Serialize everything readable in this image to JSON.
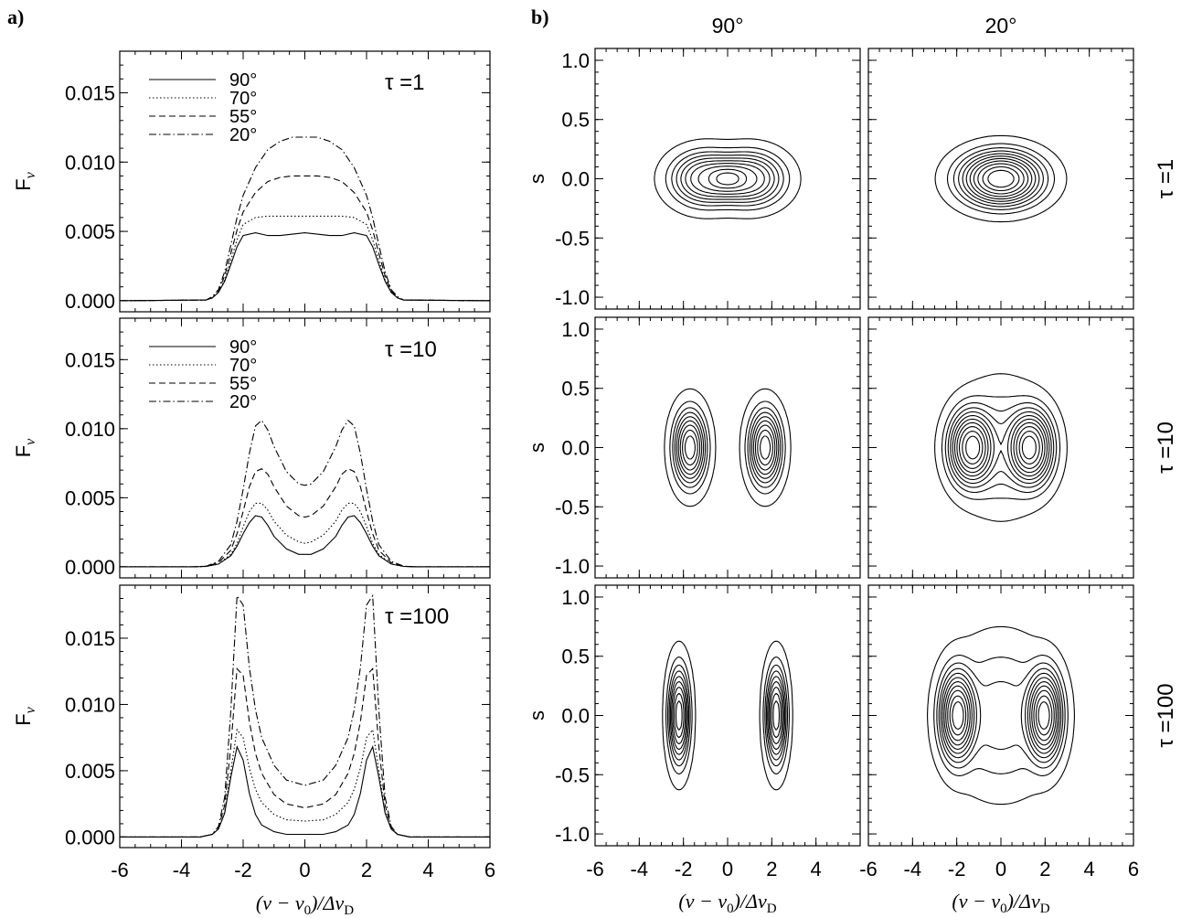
{
  "figure": {
    "panel_a_label": "a)",
    "panel_b_label": "b)",
    "col_labels": [
      "90°",
      "20°"
    ],
    "row_labels": [
      "τ =1",
      "τ =10",
      "τ =100"
    ]
  },
  "chart_data": [
    {
      "type": "line",
      "panel": "a",
      "title": "τ =1",
      "xlabel": "(ν − ν0)/ΔνD",
      "ylabel": "Fν",
      "xlim": [
        -6,
        6
      ],
      "ylim": [
        -0.0008,
        0.018
      ],
      "xticks": [
        -6,
        -4,
        -2,
        0,
        2,
        4,
        6
      ],
      "yticks": [
        "0.000",
        "0.005",
        "0.010",
        "0.015"
      ],
      "legend": "top-left",
      "series": [
        {
          "name": "90°",
          "style": "solid",
          "x": [
            -6,
            -3.2,
            -3,
            -2.8,
            -2.6,
            -2.4,
            -2.2,
            -2,
            -1.6,
            -1.2,
            -0.8,
            -0.4,
            0,
            0.4,
            0.8,
            1.2,
            1.6,
            2,
            2.2,
            2.4,
            2.6,
            2.8,
            3,
            3.2,
            6
          ],
          "y": [
            0,
            5e-05,
            0.0002,
            0.0006,
            0.0014,
            0.0026,
            0.0039,
            0.0047,
            0.0049,
            0.0047,
            0.0047,
            0.0048,
            0.0049,
            0.0048,
            0.0047,
            0.0047,
            0.0049,
            0.0047,
            0.0039,
            0.0026,
            0.0014,
            0.0006,
            0.0002,
            5e-05,
            0
          ]
        },
        {
          "name": "70°",
          "style": "dotted",
          "x": [
            -6,
            -3.2,
            -3,
            -2.8,
            -2.6,
            -2.4,
            -2.2,
            -2,
            -1.6,
            -1.2,
            -0.8,
            -0.4,
            0,
            0.4,
            0.8,
            1.2,
            1.6,
            2,
            2.2,
            2.4,
            2.6,
            2.8,
            3,
            3.2,
            6
          ],
          "y": [
            0,
            5e-05,
            0.0002,
            0.0006,
            0.0015,
            0.0029,
            0.0044,
            0.0055,
            0.006,
            0.0061,
            0.0061,
            0.0061,
            0.0061,
            0.0061,
            0.0061,
            0.0061,
            0.006,
            0.0055,
            0.0044,
            0.0029,
            0.0015,
            0.0006,
            0.0002,
            5e-05,
            0
          ]
        },
        {
          "name": "55°",
          "style": "dashed",
          "x": [
            -6,
            -3.2,
            -3,
            -2.8,
            -2.6,
            -2.4,
            -2.2,
            -2,
            -1.6,
            -1.2,
            -0.8,
            -0.4,
            0,
            0.4,
            0.8,
            1.2,
            1.6,
            2,
            2.2,
            2.4,
            2.6,
            2.8,
            3,
            3.2,
            6
          ],
          "y": [
            0,
            5e-05,
            0.0002,
            0.0007,
            0.0018,
            0.0034,
            0.0051,
            0.0064,
            0.0078,
            0.0086,
            0.0089,
            0.009,
            0.009,
            0.009,
            0.0089,
            0.0086,
            0.0078,
            0.0064,
            0.0051,
            0.0034,
            0.0018,
            0.0007,
            0.0002,
            5e-05,
            0
          ]
        },
        {
          "name": "20°",
          "style": "dashdot",
          "x": [
            -6,
            -3.2,
            -3,
            -2.8,
            -2.6,
            -2.4,
            -2.2,
            -2,
            -1.6,
            -1.2,
            -0.8,
            -0.4,
            0,
            0.4,
            0.8,
            1.2,
            1.6,
            2,
            2.2,
            2.4,
            2.6,
            2.8,
            3,
            3.2,
            6
          ],
          "y": [
            0,
            5e-05,
            0.0003,
            0.0008,
            0.0021,
            0.004,
            0.006,
            0.0076,
            0.0096,
            0.0109,
            0.0115,
            0.0118,
            0.0118,
            0.0118,
            0.0115,
            0.0109,
            0.0096,
            0.0076,
            0.006,
            0.004,
            0.0021,
            0.0008,
            0.0003,
            5e-05,
            0
          ]
        }
      ]
    },
    {
      "type": "line",
      "panel": "a",
      "title": "τ =10",
      "xlabel": "(ν − ν0)/ΔνD",
      "ylabel": "Fν",
      "xlim": [
        -6,
        6
      ],
      "ylim": [
        -0.0008,
        0.018
      ],
      "xticks": [
        -6,
        -4,
        -2,
        0,
        2,
        4,
        6
      ],
      "yticks": [
        "0.000",
        "0.005",
        "0.010",
        "0.015"
      ],
      "legend": "top-left",
      "series": [
        {
          "name": "90°",
          "style": "solid",
          "x": [
            -6,
            -3.6,
            -3.2,
            -2.8,
            -2.4,
            -2.2,
            -2,
            -1.8,
            -1.6,
            -1.4,
            -1.2,
            -1,
            -0.6,
            -0.2,
            0,
            0.2,
            0.6,
            1,
            1.2,
            1.4,
            1.6,
            1.8,
            2,
            2.2,
            2.4,
            2.8,
            3.2,
            3.6,
            6
          ],
          "y": [
            0,
            0,
            3e-05,
            0.0002,
            0.0008,
            0.0015,
            0.0024,
            0.0032,
            0.0037,
            0.0036,
            0.003,
            0.0022,
            0.0013,
            0.0009,
            0.0009,
            0.0009,
            0.0013,
            0.0022,
            0.003,
            0.0036,
            0.0037,
            0.0032,
            0.0024,
            0.0015,
            0.0008,
            0.0002,
            3e-05,
            0,
            0
          ]
        },
        {
          "name": "70°",
          "style": "dotted",
          "x": [
            -6,
            -3.6,
            -3.2,
            -2.8,
            -2.4,
            -2.2,
            -2,
            -1.8,
            -1.6,
            -1.4,
            -1.2,
            -1,
            -0.6,
            -0.2,
            0,
            0.2,
            0.6,
            1,
            1.2,
            1.4,
            1.6,
            1.8,
            2,
            2.2,
            2.4,
            2.8,
            3.2,
            3.6,
            6
          ],
          "y": [
            0,
            0,
            3e-05,
            0.0002,
            0.0009,
            0.0017,
            0.0029,
            0.004,
            0.0046,
            0.0046,
            0.0041,
            0.0033,
            0.0023,
            0.0018,
            0.0017,
            0.0018,
            0.0023,
            0.0033,
            0.0041,
            0.0046,
            0.0046,
            0.004,
            0.0029,
            0.0017,
            0.0009,
            0.0002,
            3e-05,
            0,
            0
          ]
        },
        {
          "name": "55°",
          "style": "dashed",
          "x": [
            -6,
            -3.6,
            -3.2,
            -2.8,
            -2.4,
            -2.2,
            -2,
            -1.8,
            -1.6,
            -1.4,
            -1.2,
            -1,
            -0.6,
            -0.2,
            0,
            0.2,
            0.6,
            1,
            1.2,
            1.4,
            1.6,
            1.8,
            2,
            2.2,
            2.4,
            2.8,
            3.2,
            3.6,
            6
          ],
          "y": [
            0,
            0,
            4e-05,
            0.0003,
            0.0012,
            0.0024,
            0.004,
            0.0058,
            0.0069,
            0.0071,
            0.0067,
            0.0058,
            0.0044,
            0.0037,
            0.0036,
            0.0037,
            0.0044,
            0.0058,
            0.0067,
            0.0071,
            0.0069,
            0.0058,
            0.004,
            0.0024,
            0.0012,
            0.0003,
            4e-05,
            0,
            0
          ]
        },
        {
          "name": "20°",
          "style": "dashdot",
          "x": [
            -6,
            -3.6,
            -3.2,
            -2.8,
            -2.4,
            -2.2,
            -2,
            -1.8,
            -1.6,
            -1.4,
            -1.2,
            -1,
            -0.6,
            -0.2,
            0,
            0.2,
            0.6,
            1,
            1.2,
            1.4,
            1.6,
            1.8,
            2,
            2.2,
            2.4,
            2.8,
            3.2,
            3.6,
            6
          ],
          "y": [
            0,
            0,
            5e-05,
            0.0004,
            0.0016,
            0.0033,
            0.0056,
            0.0082,
            0.0102,
            0.0106,
            0.0099,
            0.0087,
            0.0069,
            0.006,
            0.0059,
            0.006,
            0.0069,
            0.0087,
            0.0099,
            0.0106,
            0.0102,
            0.0082,
            0.0056,
            0.0033,
            0.0016,
            0.0004,
            5e-05,
            0,
            0
          ]
        }
      ]
    },
    {
      "type": "line",
      "panel": "a",
      "title": "τ =100",
      "xlabel": "(ν − ν0)/ΔνD",
      "ylabel": "Fν",
      "xlim": [
        -6,
        6
      ],
      "ylim": [
        -0.0008,
        0.019
      ],
      "xticks": [
        -6,
        -4,
        -2,
        0,
        2,
        4,
        6
      ],
      "yticks": [
        "0.000",
        "0.005",
        "0.010",
        "0.015"
      ],
      "series": [
        {
          "name": "90°",
          "style": "solid",
          "x": [
            -6,
            -3.4,
            -3,
            -2.8,
            -2.6,
            -2.4,
            -2.2,
            -2,
            -1.8,
            -1.6,
            -1.4,
            -1,
            -0.6,
            0,
            0.6,
            1,
            1.4,
            1.6,
            1.8,
            2,
            2.2,
            2.4,
            2.6,
            2.8,
            3,
            3.4,
            6
          ],
          "y": [
            0,
            0,
            0.0002,
            0.0006,
            0.0018,
            0.0045,
            0.0068,
            0.0058,
            0.0033,
            0.0017,
            0.0009,
            0.0004,
            0.0002,
            0.0002,
            0.0002,
            0.0004,
            0.0009,
            0.0017,
            0.0033,
            0.0058,
            0.0068,
            0.0045,
            0.0018,
            0.0006,
            0.0002,
            0,
            0
          ]
        },
        {
          "name": "70°",
          "style": "dotted",
          "x": [
            -6,
            -3.4,
            -3,
            -2.8,
            -2.6,
            -2.4,
            -2.2,
            -2,
            -1.8,
            -1.6,
            -1.4,
            -1,
            -0.6,
            0,
            0.6,
            1,
            1.4,
            1.6,
            1.8,
            2,
            2.2,
            2.4,
            2.6,
            2.8,
            3,
            3.4,
            6
          ],
          "y": [
            0,
            0,
            0.0002,
            0.0006,
            0.0019,
            0.005,
            0.0081,
            0.0075,
            0.0052,
            0.0036,
            0.0026,
            0.0017,
            0.0013,
            0.0012,
            0.0013,
            0.0017,
            0.0026,
            0.0036,
            0.0052,
            0.0075,
            0.0081,
            0.005,
            0.0019,
            0.0006,
            0.0002,
            0,
            0
          ]
        },
        {
          "name": "55°",
          "style": "dashed",
          "x": [
            -6,
            -3.4,
            -3,
            -2.8,
            -2.6,
            -2.4,
            -2.2,
            -2,
            -1.8,
            -1.6,
            -1.4,
            -1,
            -0.6,
            0,
            0.6,
            1,
            1.4,
            1.6,
            1.8,
            2,
            2.2,
            2.4,
            2.6,
            2.8,
            3,
            3.4,
            6
          ],
          "y": [
            0,
            0,
            0.0002,
            0.0007,
            0.0024,
            0.0068,
            0.0127,
            0.0122,
            0.0087,
            0.0063,
            0.0048,
            0.0032,
            0.0025,
            0.0022,
            0.0025,
            0.0032,
            0.0048,
            0.0063,
            0.0087,
            0.0122,
            0.0127,
            0.0068,
            0.0024,
            0.0007,
            0.0002,
            0,
            0
          ]
        },
        {
          "name": "20°",
          "style": "dashdot",
          "x": [
            -6,
            -3.4,
            -3,
            -2.8,
            -2.6,
            -2.4,
            -2.2,
            -2,
            -1.8,
            -1.6,
            -1.4,
            -1,
            -0.6,
            0,
            0.6,
            1,
            1.4,
            1.6,
            1.8,
            2,
            2.2,
            2.4,
            2.6,
            2.8,
            3,
            3.4,
            6
          ],
          "y": [
            0,
            0,
            0.0002,
            0.0008,
            0.003,
            0.0095,
            0.0182,
            0.0175,
            0.0128,
            0.0096,
            0.0075,
            0.0054,
            0.0043,
            0.0039,
            0.0043,
            0.0054,
            0.0075,
            0.0096,
            0.0128,
            0.0175,
            0.0182,
            0.0095,
            0.003,
            0.0008,
            0.0002,
            0,
            0
          ]
        }
      ]
    },
    {
      "type": "contour",
      "panel": "b",
      "column": "90°",
      "row": "τ =1",
      "xlim": [
        -6,
        6
      ],
      "ylim": [
        -1.1,
        1.1
      ],
      "xlabel": "",
      "ylabel": "s",
      "xticks": [],
      "yticks": [
        "-1.0",
        "-0.5",
        "0.0",
        "0.5",
        "1.0"
      ],
      "levels": 10,
      "peaks": [
        {
          "x": -1.0,
          "s": 0.0,
          "wx": 1.45,
          "ws": 0.21,
          "amp": 1.0
        },
        {
          "x": 1.0,
          "s": 0.0,
          "wx": 1.45,
          "ws": 0.21,
          "amp": 1.0
        }
      ]
    },
    {
      "type": "contour",
      "panel": "b",
      "column": "20°",
      "row": "τ =1",
      "xlim": [
        -6,
        6
      ],
      "ylim": [
        -1.1,
        1.1
      ],
      "xlabel": "",
      "ylabel": "",
      "xticks": [],
      "yticks": [],
      "levels": 11,
      "peaks": [
        {
          "x": 0.0,
          "s": 0.0,
          "wx": 1.8,
          "ws": 0.22,
          "amp": 1.0
        }
      ]
    },
    {
      "type": "contour",
      "panel": "b",
      "column": "90°",
      "row": "τ =10",
      "xlim": [
        -6,
        6
      ],
      "ylim": [
        -1.1,
        1.1
      ],
      "xlabel": "",
      "ylabel": "s",
      "xticks": [],
      "yticks": [
        "-1.0",
        "-0.5",
        "0.0",
        "0.5",
        "1.0"
      ],
      "levels": 9,
      "peaks": [
        {
          "x": -1.7,
          "s": 0.0,
          "wx": 0.7,
          "ws": 0.3,
          "amp": 1.0
        },
        {
          "x": 1.7,
          "s": 0.0,
          "wx": 0.7,
          "ws": 0.3,
          "amp": 1.0
        }
      ]
    },
    {
      "type": "contour",
      "panel": "b",
      "column": "20°",
      "row": "τ =10",
      "xlim": [
        -6,
        6
      ],
      "ylim": [
        -1.1,
        1.1
      ],
      "xlabel": "",
      "ylabel": "",
      "xticks": [],
      "yticks": [],
      "levels": 11,
      "peaks": [
        {
          "x": -1.4,
          "s": 0.0,
          "wx": 0.95,
          "ws": 0.3,
          "amp": 1.0
        },
        {
          "x": 1.4,
          "s": 0.0,
          "wx": 0.95,
          "ws": 0.3,
          "amp": 1.0
        },
        {
          "x": 0.0,
          "s": 0.0,
          "wx": 1.8,
          "ws": 0.45,
          "amp": 0.35
        }
      ]
    },
    {
      "type": "contour",
      "panel": "b",
      "column": "90°",
      "row": "τ =100",
      "xlim": [
        -6,
        6
      ],
      "ylim": [
        -1.1,
        1.1
      ],
      "xlabel": "(ν − ν0)/ΔνD",
      "ylabel": "s",
      "xticks": [
        -6,
        -4,
        -2,
        0,
        2,
        4
      ],
      "yticks": [
        "-1.0",
        "-0.5",
        "0.0",
        "0.5",
        "1.0"
      ],
      "levels": 9,
      "peaks": [
        {
          "x": -2.2,
          "s": 0.0,
          "wx": 0.45,
          "ws": 0.38,
          "amp": 1.0
        },
        {
          "x": 2.2,
          "s": 0.0,
          "wx": 0.45,
          "ws": 0.38,
          "amp": 1.0
        }
      ]
    },
    {
      "type": "contour",
      "panel": "b",
      "column": "20°",
      "row": "τ =100",
      "xlim": [
        -6,
        6
      ],
      "ylim": [
        -1.1,
        1.1
      ],
      "xlabel": "(ν − ν0)/ΔνD",
      "ylabel": "",
      "xticks": [
        -6,
        -4,
        -2,
        0,
        2,
        4,
        6
      ],
      "yticks": [],
      "levels": 11,
      "peaks": [
        {
          "x": -2.0,
          "s": 0.0,
          "wx": 0.75,
          "ws": 0.36,
          "amp": 1.0
        },
        {
          "x": 2.0,
          "s": 0.0,
          "wx": 0.75,
          "ws": 0.36,
          "amp": 1.0
        },
        {
          "x": 0.0,
          "s": 0.0,
          "wx": 2.2,
          "ws": 0.55,
          "amp": 0.3
        }
      ]
    }
  ]
}
